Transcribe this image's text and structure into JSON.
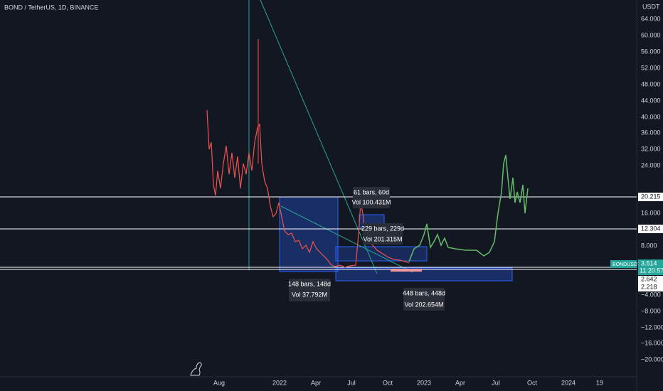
{
  "header": {
    "symbol": "BOND / TetherUS, 1D, BINANCE",
    "currency": "USDT"
  },
  "price_axis": [
    "64.000",
    "60.000",
    "56.000",
    "52.000",
    "48.000",
    "44.000",
    "40.000",
    "36.000",
    "32.000",
    "24.000",
    "16.000",
    "8.000",
    "−4.000",
    "−8.000",
    "−12.000",
    "−16.000",
    "−20.000"
  ],
  "time_axis": [
    "Aug",
    "2022",
    "Apr",
    "Jul",
    "Oct",
    "2023",
    "Apr",
    "Jul",
    "Oct",
    "2024",
    "19"
  ],
  "price_labels": {
    "upper_line": "20.215",
    "middle_line": "12.304",
    "ticker": "BONDUSDT",
    "last_price": "3.514",
    "countdown": "11:20:57",
    "lower_line_1": "2.642",
    "lower_line_2": "2.218"
  },
  "measurements": [
    {
      "bars": "148 bars, 148d",
      "volume": "Vol 37.792M"
    },
    {
      "bars": "61 bars, 60d",
      "volume": "Vol 100.431M"
    },
    {
      "bars": "229 bars, 229d",
      "volume": "Vol 201.315M"
    },
    {
      "bars": "448 bars, 448d",
      "volume": "Vol 202.654M"
    }
  ]
}
